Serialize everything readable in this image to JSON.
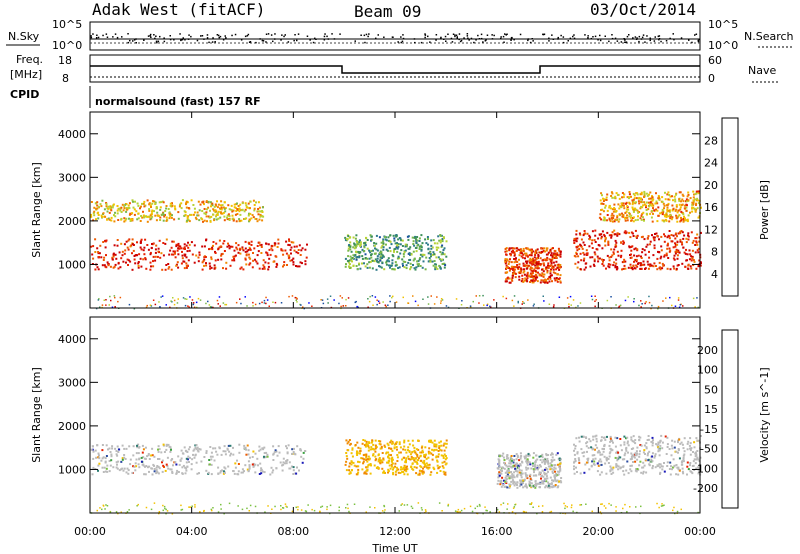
{
  "header": {
    "station": "Adak West (fitACF)",
    "beam": "Beam 09",
    "date": "03/Oct/2014"
  },
  "panels": {
    "nsky_label": "N.Sky",
    "nsky_ticks": [
      "10^5",
      "10^0"
    ],
    "nsearch_label": "N.Search",
    "nsearch_ticks": [
      "10^5",
      "10^0"
    ],
    "freq_label_1": "Freq.",
    "freq_label_2": "[MHz]",
    "freq_ticks": [
      "18",
      "8"
    ],
    "nave_label": "Nave",
    "nave_ticks": [
      "60",
      "0"
    ],
    "cpid_label": "CPID",
    "cpid_text": "normalsound (fast) 157 RF"
  },
  "colors": {
    "power_scale": [
      "#0000ff",
      "#1a4fa0",
      "#2e7a8a",
      "#3c8f5a",
      "#7ab84a",
      "#b6d236",
      "#f2c200",
      "#f08a00",
      "#ee5a00",
      "#e62000",
      "#cc0000"
    ],
    "velocity_scale": [
      "#1a1ab8",
      "#2a4aa0",
      "#2a7a70",
      "#3aa040",
      "#7ac040",
      "#bbbbbb",
      "#f2c200",
      "#f08a00",
      "#ee5a00",
      "#e62000"
    ]
  },
  "chart_data": [
    {
      "type": "heatmap",
      "name": "power",
      "xlabel": "",
      "ylabel": "Slant Range [km]",
      "xlim": [
        "00:00",
        "24:00"
      ],
      "ylim": [
        0,
        4500
      ],
      "yticks": [
        1000,
        2000,
        3000,
        4000
      ],
      "colorbar": {
        "label": "Power [dB]",
        "ticks": [
          4,
          8,
          12,
          16,
          20,
          24,
          28
        ]
      },
      "features": [
        {
          "x_hours": [
            0,
            8.5
          ],
          "y_km": [
            900,
            1600
          ],
          "value_db": 28
        },
        {
          "x_hours": [
            0,
            6.8
          ],
          "y_km": [
            2000,
            2500
          ],
          "value_db": 18
        },
        {
          "x_hours": [
            10,
            14
          ],
          "y_km": [
            900,
            1700
          ],
          "value_db": 10
        },
        {
          "x_hours": [
            16.3,
            18.5
          ],
          "y_km": [
            600,
            1400
          ],
          "value_db": 26
        },
        {
          "x_hours": [
            19,
            24
          ],
          "y_km": [
            900,
            1800
          ],
          "value_db": 28
        },
        {
          "x_hours": [
            20,
            24
          ],
          "y_km": [
            2000,
            2700
          ],
          "value_db": 20
        }
      ]
    },
    {
      "type": "heatmap",
      "name": "velocity",
      "xlabel": "Time UT",
      "ylabel": "Slant Range [km]",
      "xlim": [
        "00:00",
        "24:00"
      ],
      "ylim": [
        0,
        4500
      ],
      "xticks": [
        "00:00",
        "04:00",
        "08:00",
        "12:00",
        "16:00",
        "20:00",
        "00:00"
      ],
      "yticks": [
        1000,
        2000,
        3000,
        4000
      ],
      "colorbar": {
        "label": "Velocity [m s^-1]",
        "ticks": [
          200,
          100,
          50,
          15,
          -15,
          -50,
          -100,
          -200
        ]
      },
      "features": [
        {
          "x_hours": [
            0,
            8.5
          ],
          "y_km": [
            900,
            1600
          ],
          "value_ms": 0
        },
        {
          "x_hours": [
            10,
            14
          ],
          "y_km": [
            900,
            1700
          ],
          "value_ms": -60
        },
        {
          "x_hours": [
            16,
            18.5
          ],
          "y_km": [
            600,
            1400
          ],
          "value_ms": 0
        },
        {
          "x_hours": [
            19,
            24
          ],
          "y_km": [
            900,
            1800
          ],
          "value_ms": 0
        }
      ]
    }
  ]
}
